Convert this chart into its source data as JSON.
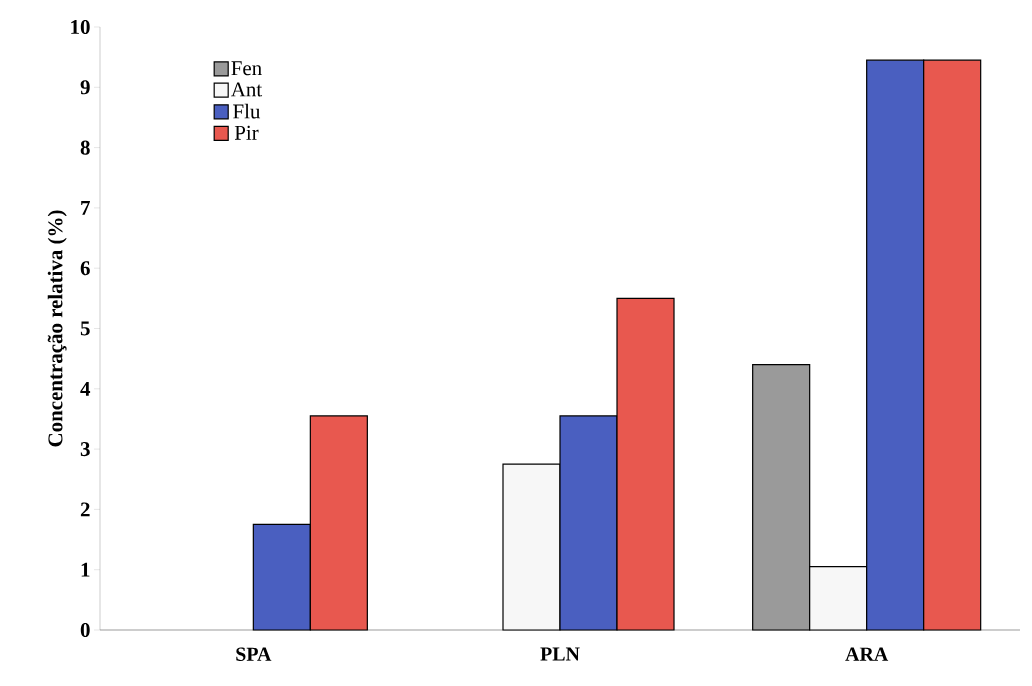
{
  "chart_data": {
    "type": "bar",
    "ylabel": "Concentração relativa (%)",
    "categories": [
      "SPA",
      "PLN",
      "ARA"
    ],
    "series": [
      {
        "name": "Fen",
        "color": "#9a9a9a",
        "values": [
          0,
          0,
          4.4
        ]
      },
      {
        "name": "Ant",
        "color": "#f7f7f7",
        "values": [
          0,
          2.75,
          1.05
        ]
      },
      {
        "name": "Flu",
        "color": "#4a5fc0",
        "values": [
          1.75,
          3.55,
          9.45
        ]
      },
      {
        "name": "Pir",
        "color": "#e8584f",
        "values": [
          3.55,
          5.5,
          9.45
        ]
      }
    ],
    "ylim": [
      0,
      10
    ],
    "yticks": [
      0,
      1,
      2,
      3,
      4,
      5,
      6,
      7,
      8,
      9,
      10
    ],
    "legend": "top left"
  }
}
